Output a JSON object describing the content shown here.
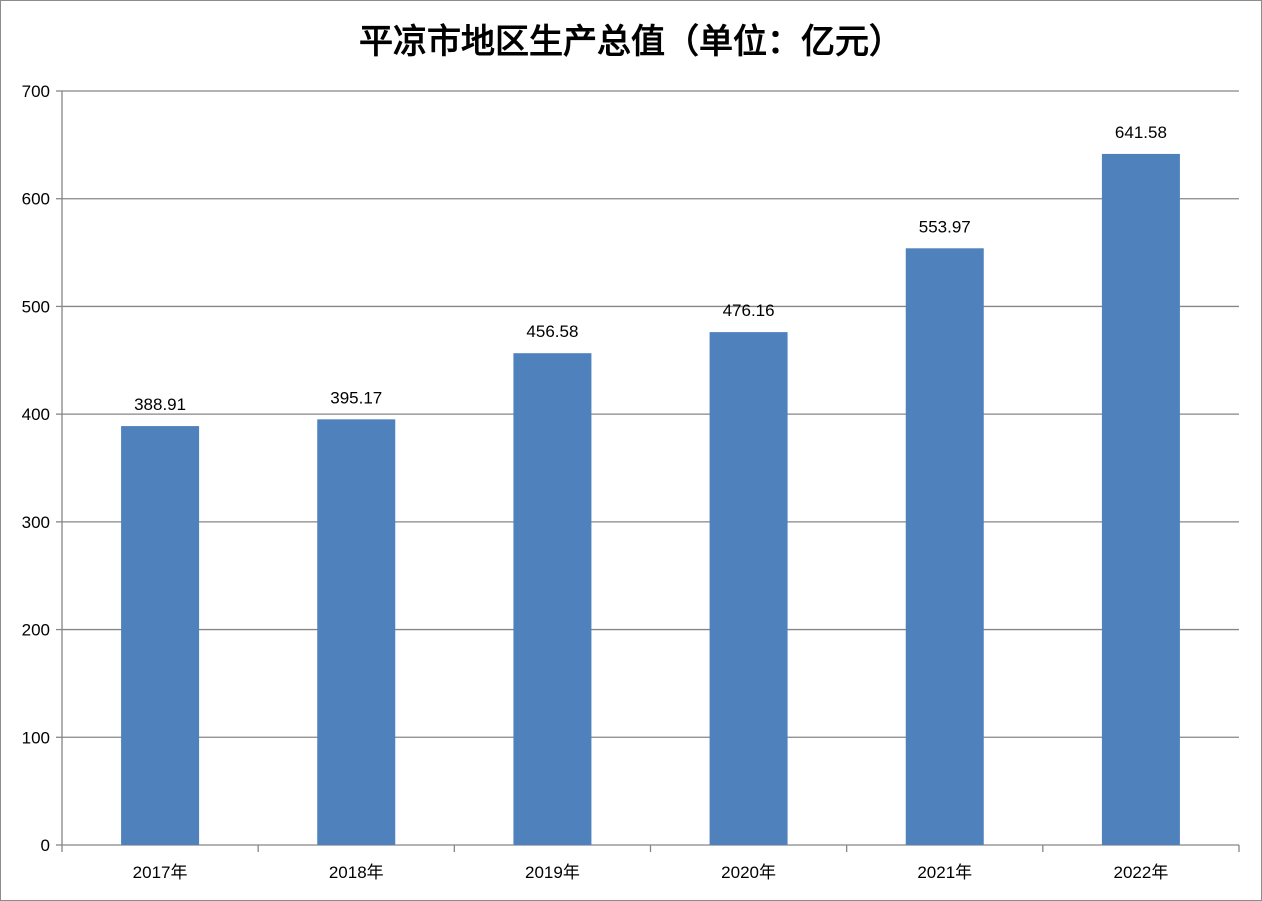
{
  "chart_data": {
    "type": "bar",
    "title": "平凉市地区生产总值（单位：亿元）",
    "xlabel": "",
    "ylabel": "",
    "categories": [
      "2017年",
      "2018年",
      "2019年",
      "2020年",
      "2021年",
      "2022年"
    ],
    "values": [
      388.91,
      395.17,
      456.58,
      476.16,
      553.97,
      641.58
    ],
    "data_labels": [
      "388.91",
      "395.17",
      "456.58",
      "476.16",
      "553.97",
      "641.58"
    ],
    "ylim": [
      0,
      700
    ],
    "yticks": [
      0,
      100,
      200,
      300,
      400,
      500,
      600,
      700
    ],
    "ytick_labels": [
      "0",
      "100",
      "200",
      "300",
      "400",
      "500",
      "600",
      "700"
    ],
    "grid": true,
    "legend": "none",
    "bar_color": "#4f81bd",
    "grid_color": "#868686"
  }
}
